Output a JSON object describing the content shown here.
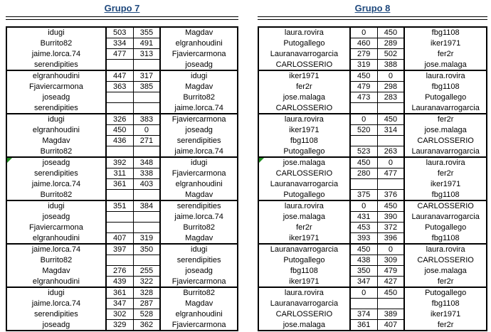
{
  "colors": {
    "title_text": "#1F497D",
    "border": "#000000",
    "comment_marker": "#1E8C1E",
    "cell_text": "#000000",
    "background": "#FFFFFF"
  },
  "groups": [
    {
      "title": "Grupo 7",
      "blocks": [
        {
          "rows": [
            [
              "idugi",
              "503",
              "355",
              "Magdav"
            ],
            [
              "Burrito82",
              "334",
              "491",
              "elgranhoudini"
            ],
            [
              "jaime.lorca.74",
              "477",
              "313",
              "Fjaviercarmona"
            ],
            [
              "serendipities",
              "",
              "",
              "joseadg"
            ]
          ]
        },
        {
          "rows": [
            [
              "elgranhoudini",
              "447",
              "317",
              "idugi"
            ],
            [
              "Fjaviercarmona",
              "363",
              "385",
              "Magdav"
            ],
            [
              "joseadg",
              "",
              "",
              "Burrito82"
            ],
            [
              "serendipities",
              "",
              "",
              "jaime.lorca.74"
            ]
          ]
        },
        {
          "rows": [
            [
              "idugi",
              "326",
              "383",
              "Fjaviercarmona"
            ],
            [
              "elgranhoudini",
              "450",
              "0",
              "joseadg"
            ],
            [
              "Magdav",
              "436",
              "271",
              "serendipities"
            ],
            [
              "Burrito82",
              "",
              "",
              "jaime.lorca.74"
            ]
          ]
        },
        {
          "marker": true,
          "rows": [
            [
              "joseadg",
              "392",
              "348",
              "idugi"
            ],
            [
              "serendipities",
              "311",
              "338",
              "Fjaviercarmona"
            ],
            [
              "jaime.lorca.74",
              "361",
              "403",
              "elgranhoudini"
            ],
            [
              "Burrito82",
              "",
              "",
              "Magdav"
            ]
          ]
        },
        {
          "rows": [
            [
              "idugi",
              "351",
              "384",
              "serendipities"
            ],
            [
              "joseadg",
              "",
              "",
              "jaime.lorca.74"
            ],
            [
              "Fjaviercarmona",
              "",
              "",
              "Burrito82"
            ],
            [
              "elgranhoudini",
              "407",
              "319",
              "Magdav"
            ]
          ]
        },
        {
          "rows": [
            [
              "jaime.lorca.74",
              "397",
              "350",
              "idugi"
            ],
            [
              "Burrito82",
              "",
              "",
              "serendipities"
            ],
            [
              "Magdav",
              "276",
              "255",
              "joseadg"
            ],
            [
              "elgranhoudini",
              "439",
              "322",
              "Fjaviercarmona"
            ]
          ]
        },
        {
          "rows": [
            [
              "idugi",
              "361",
              "328",
              "Burrito82"
            ],
            [
              "jaime.lorca.74",
              "347",
              "287",
              "Magdav"
            ],
            [
              "serendipities",
              "302",
              "528",
              "elgranhoudini"
            ],
            [
              "joseadg",
              "329",
              "362",
              "Fjaviercarmona"
            ]
          ]
        }
      ]
    },
    {
      "title": "Grupo 8",
      "blocks": [
        {
          "rows": [
            [
              "laura.rovira",
              "0",
              "450",
              "fbg1108"
            ],
            [
              "Putogallego",
              "460",
              "289",
              "iker1971"
            ],
            [
              "Lauranavarrogarcia",
              "279",
              "502",
              "fer2r"
            ],
            [
              "CARLOSSERIO",
              "319",
              "388",
              "jose.malaga"
            ]
          ]
        },
        {
          "rows": [
            [
              "iker1971",
              "450",
              "0",
              "laura.rovira"
            ],
            [
              "fer2r",
              "479",
              "298",
              "fbg1108"
            ],
            [
              "jose.malaga",
              "473",
              "283",
              "Putogallego"
            ],
            [
              "CARLOSSERIO",
              "",
              "",
              "Lauranavarrogarcia"
            ]
          ]
        },
        {
          "rows": [
            [
              "laura.rovira",
              "0",
              "450",
              "fer2r"
            ],
            [
              "iker1971",
              "520",
              "314",
              "jose.malaga"
            ],
            [
              "fbg1108",
              "",
              "",
              "CARLOSSERIO"
            ],
            [
              "Putogallego",
              "523",
              "263",
              "Lauranavarrogarcia"
            ]
          ]
        },
        {
          "marker": true,
          "rows": [
            [
              "jose.malaga",
              "450",
              "0",
              "laura.rovira"
            ],
            [
              "CARLOSSERIO",
              "280",
              "477",
              "fer2r"
            ],
            [
              "Lauranavarrogarcia",
              "",
              "",
              "iker1971"
            ],
            [
              "Putogallego",
              "375",
              "376",
              "fbg1108"
            ]
          ]
        },
        {
          "rows": [
            [
              "laura.rovira",
              "0",
              "450",
              "CARLOSSERIO"
            ],
            [
              "jose.malaga",
              "431",
              "390",
              "Lauranavarrogarcia"
            ],
            [
              "fer2r",
              "453",
              "372",
              "Putogallego"
            ],
            [
              "iker1971",
              "393",
              "396",
              "fbg1108"
            ]
          ]
        },
        {
          "rows": [
            [
              "Lauranavarrogarcia",
              "450",
              "0",
              "laura.rovira"
            ],
            [
              "Putogallego",
              "438",
              "309",
              "CARLOSSERIO"
            ],
            [
              "fbg1108",
              "350",
              "479",
              "jose.malaga"
            ],
            [
              "iker1971",
              "347",
              "427",
              "fer2r"
            ]
          ]
        },
        {
          "rows": [
            [
              "laura.rovira",
              "0",
              "450",
              "Putogallego"
            ],
            [
              "Lauranavarrogarcia",
              "",
              "",
              "fbg1108"
            ],
            [
              "CARLOSSERIO",
              "374",
              "389",
              "iker1971"
            ],
            [
              "jose.malaga",
              "361",
              "407",
              "fer2r"
            ]
          ]
        }
      ]
    }
  ]
}
